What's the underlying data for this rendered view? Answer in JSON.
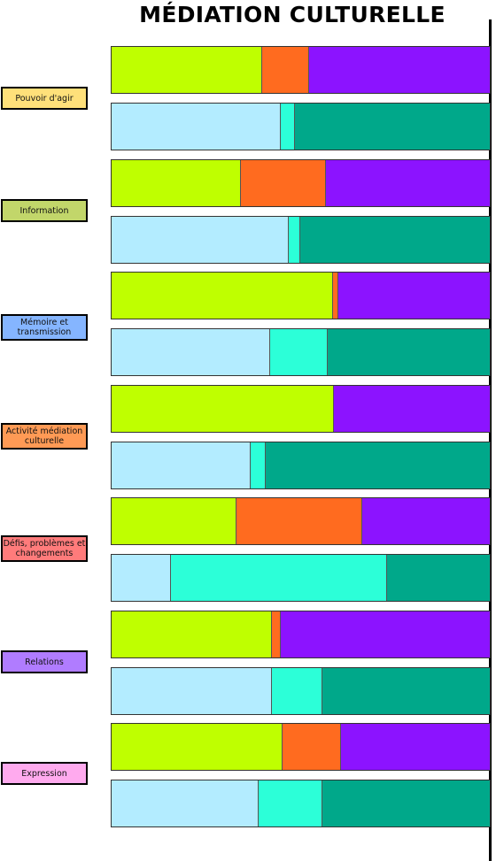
{
  "chart_data": {
    "type": "bar",
    "orientation": "horizontal",
    "stacked": "100%",
    "title": "MÉDIATION CULTURELLE",
    "segment_colors": {
      "row_a": [
        "#bfff00",
        "#ff6b1f",
        "#8c13ff"
      ],
      "row_b": [
        "#b3ecff",
        "#2cffd8",
        "#00a88a"
      ]
    },
    "categories": [
      {
        "label": "Pouvoir d'agir",
        "color": "#ffe07a",
        "row_a": [
          39.6,
          12.4,
          48.0
        ],
        "row_b": [
          44.6,
          3.7,
          51.7
        ]
      },
      {
        "label": "Information",
        "color": "#c2d66a",
        "row_a": [
          33.9,
          22.5,
          43.6
        ],
        "row_b": [
          46.6,
          3.0,
          50.4
        ]
      },
      {
        "label": "Mémoire et transmission",
        "color": "#85b5ff",
        "row_a": [
          58.4,
          1.4,
          40.2
        ],
        "row_b": [
          41.6,
          15.2,
          43.2
        ]
      },
      {
        "label": "Activité médiation culturelle",
        "color": "#ff9a55",
        "row_a": [
          58.6,
          0.0,
          41.4
        ],
        "row_b": [
          36.5,
          4.0,
          59.5
        ]
      },
      {
        "label": "Défis, problèmes et changements",
        "color": "#ff7b7b",
        "row_a": [
          32.7,
          33.3,
          34.0
        ],
        "row_b": [
          15.4,
          57.3,
          27.3
        ]
      },
      {
        "label": "Relations",
        "color": "#b07cff",
        "row_a": [
          42.1,
          2.5,
          55.4
        ],
        "row_b": [
          42.1,
          13.3,
          44.6
        ]
      },
      {
        "label": "Expression",
        "color": "#ffaaee",
        "row_a": [
          45.0,
          15.5,
          39.5
        ],
        "row_b": [
          38.6,
          17.0,
          44.4
        ]
      }
    ]
  }
}
